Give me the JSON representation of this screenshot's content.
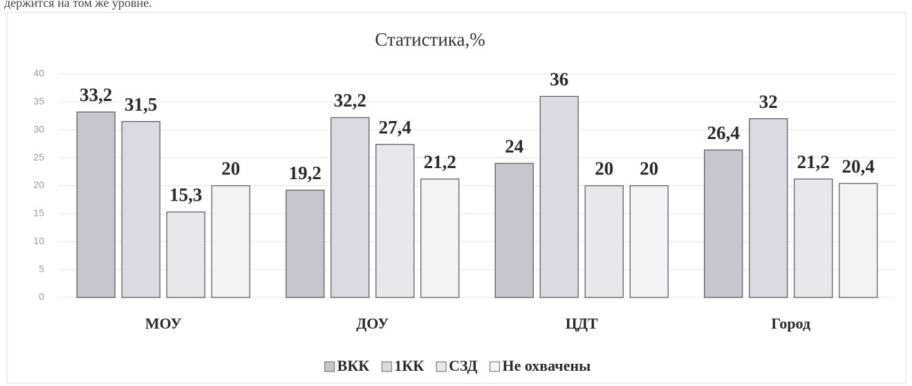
{
  "intro_text": "держится на том же уровне.",
  "chart_data": {
    "type": "bar",
    "title": "Статистика,%",
    "categories": [
      "МОУ",
      "ДОУ",
      "ЦДТ",
      "Город"
    ],
    "series": [
      {
        "name": "ВКК",
        "color": "#c6c6ce",
        "values": [
          33.2,
          19.2,
          24,
          26.4
        ],
        "value_labels": [
          "33,2",
          "19,2",
          "24",
          "26,4"
        ]
      },
      {
        "name": "1КК",
        "color": "#dadae2",
        "values": [
          31.5,
          32.2,
          36,
          32
        ],
        "value_labels": [
          "31,5",
          "32,2",
          "36",
          "32"
        ]
      },
      {
        "name": "СЗД",
        "color": "#e7e7ec",
        "values": [
          15.3,
          27.4,
          20,
          21.2
        ],
        "value_labels": [
          "15,3",
          "27,4",
          "20",
          "21,2"
        ]
      },
      {
        "name": "Не охвачены",
        "color": "#f3f3f5",
        "values": [
          20,
          21.2,
          20,
          20.4
        ],
        "value_labels": [
          "20",
          "21,2",
          "20",
          "20,4"
        ]
      }
    ],
    "ylim": [
      0,
      40
    ],
    "yticks": [
      0,
      5,
      10,
      15,
      20,
      25,
      30,
      35,
      40
    ],
    "grid": true,
    "legend": "bottom"
  }
}
